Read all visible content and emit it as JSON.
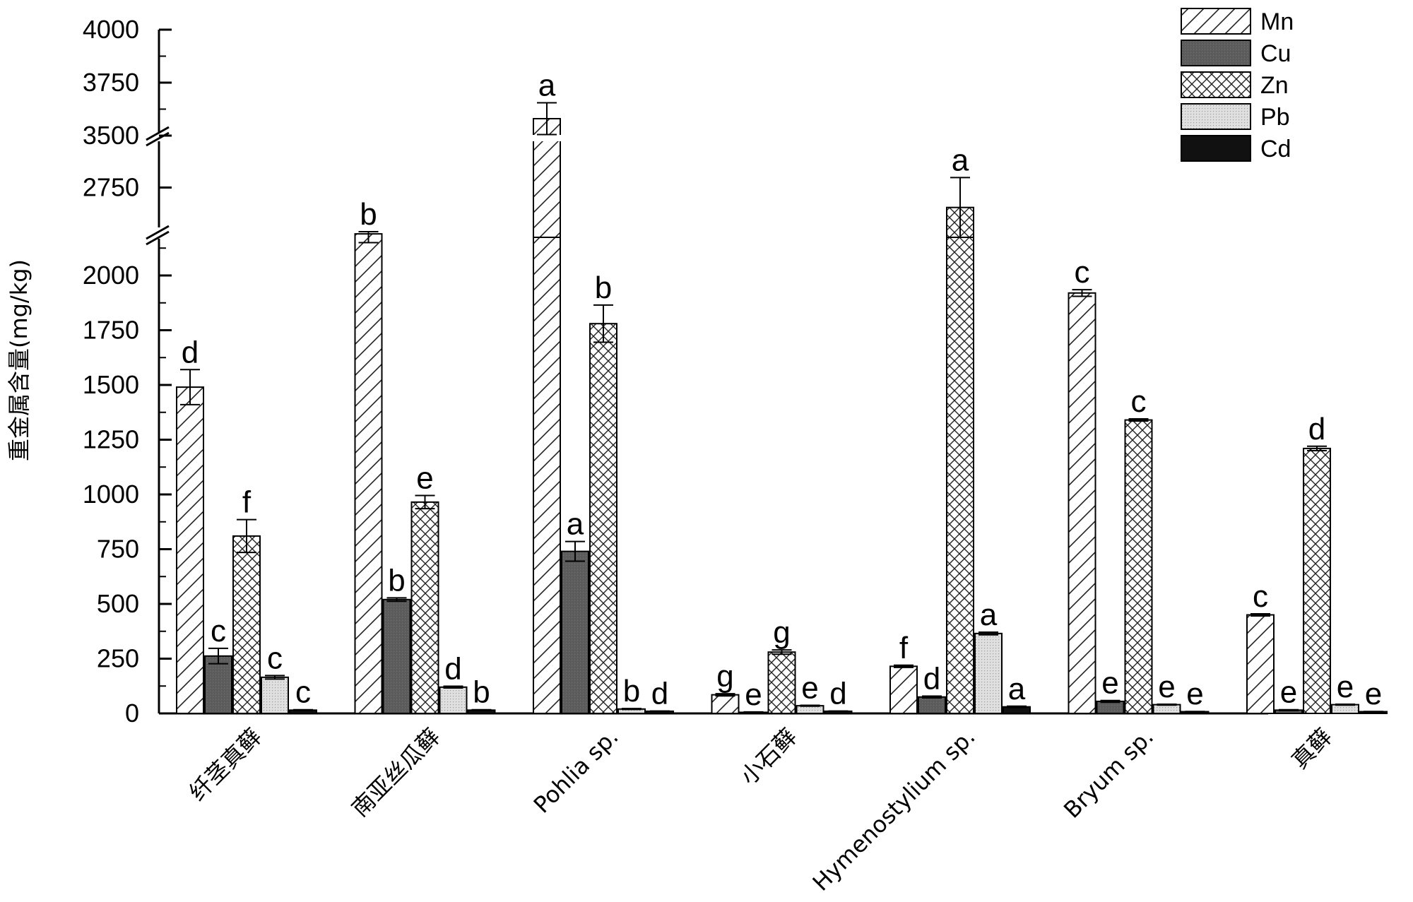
{
  "chart_data": {
    "type": "bar",
    "title": "",
    "xlabel": "",
    "ylabel": "重金属含量(mg/kg)",
    "ylim": [
      0,
      4000
    ],
    "axis_breaks": [
      [
        2200,
        2650
      ],
      [
        2850,
        3500
      ]
    ],
    "y_ticks": [
      0,
      250,
      500,
      750,
      1000,
      1250,
      1500,
      1750,
      2000,
      2750,
      3500,
      3750,
      4000
    ],
    "legend_position": "top-right",
    "grid": false,
    "categories": [
      "纤茎真藓",
      "南亚丝瓜藓",
      "Pohlia sp.",
      "小石藓",
      "Hymenostylium sp.",
      "Bryum sp.",
      "真藓"
    ],
    "series": [
      {
        "name": "Mn",
        "pattern": "diagonal-hatch",
        "color": "#ffffff",
        "values": [
          1490,
          2190,
          3580,
          85,
          215,
          1920,
          450
        ],
        "errors": [
          80,
          40,
          75,
          5,
          5,
          15,
          5
        ],
        "labels": [
          "d",
          "b",
          "a",
          "g",
          "f",
          "c",
          "c"
        ]
      },
      {
        "name": "Cu",
        "pattern": "solid-dark",
        "color": "#5a5a5a",
        "values": [
          262,
          520,
          740,
          5,
          75,
          55,
          15
        ],
        "errors": [
          35,
          8,
          45,
          2,
          4,
          4,
          2
        ],
        "labels": [
          "c",
          "b",
          "a",
          "e",
          "d",
          "e",
          "e"
        ]
      },
      {
        "name": "Zn",
        "pattern": "cross-hatch",
        "color": "#ffffff",
        "values": [
          810,
          965,
          1780,
          280,
          2710,
          1340,
          1210
        ],
        "errors": [
          75,
          30,
          85,
          10,
          60,
          5,
          10
        ],
        "labels": [
          "f",
          "e",
          "b",
          "g",
          "a",
          "c",
          "d"
        ]
      },
      {
        "name": "Pb",
        "pattern": "light-dotted",
        "color": "#dddddd",
        "values": [
          165,
          120,
          20,
          35,
          365,
          40,
          40
        ],
        "errors": [
          8,
          4,
          2,
          2,
          6,
          2,
          2
        ],
        "labels": [
          "c",
          "d",
          "b",
          "e",
          "a",
          "e",
          "e"
        ]
      },
      {
        "name": "Cd",
        "pattern": "solid-black",
        "color": "#111111",
        "values": [
          15,
          15,
          10,
          10,
          30,
          8,
          8
        ],
        "errors": [
          2,
          2,
          1,
          1,
          3,
          1,
          1
        ],
        "labels": [
          "c",
          "b",
          "d",
          "d",
          "a",
          "e",
          "e"
        ]
      }
    ]
  }
}
